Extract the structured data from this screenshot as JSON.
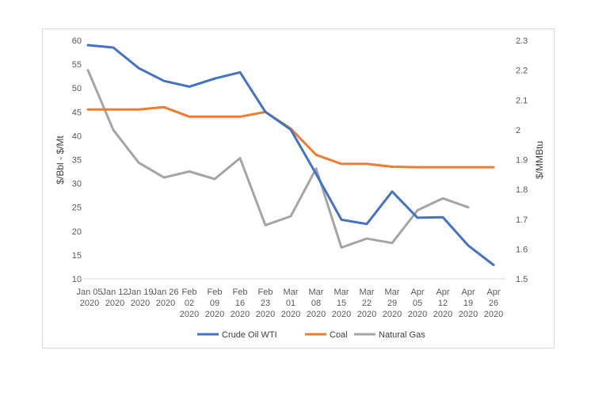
{
  "chart_data": {
    "type": "line",
    "title": "",
    "categories": [
      [
        "Jan 05",
        "2020"
      ],
      [
        "Jan 12",
        "2020"
      ],
      [
        "Jan 19",
        "2020"
      ],
      [
        "Jan 26",
        "2020"
      ],
      [
        "Feb",
        "02",
        "2020"
      ],
      [
        "Feb",
        "09",
        "2020"
      ],
      [
        "Feb",
        "16",
        "2020"
      ],
      [
        "Feb",
        "23",
        "2020"
      ],
      [
        "Mar",
        "01",
        "2020"
      ],
      [
        "Mar",
        "08",
        "2020"
      ],
      [
        "Mar",
        "15",
        "2020"
      ],
      [
        "Mar",
        "22",
        "2020"
      ],
      [
        "Mar",
        "29",
        "2020"
      ],
      [
        "Apr",
        "05",
        "2020"
      ],
      [
        "Apr",
        "12",
        "2020"
      ],
      [
        "Apr",
        "19",
        "2020"
      ],
      [
        "Apr",
        "26",
        "2020"
      ]
    ],
    "y_left": {
      "label": "$/Bbl - $/Mt",
      "min": 10,
      "max": 60,
      "ticks": [
        10,
        15,
        20,
        25,
        30,
        35,
        40,
        45,
        50,
        55,
        60
      ]
    },
    "y_right": {
      "label": "$/MMBtu",
      "min": 1.5,
      "max": 2.3,
      "ticks": [
        "1.5",
        "1.6",
        "1.7",
        "1.8",
        "1.9",
        "2",
        "2.1",
        "2.2",
        "2.3"
      ]
    },
    "grid": false,
    "legend_position": "bottom",
    "series": [
      {
        "name": "Crude Oil WTI",
        "axis": "left",
        "color": "#4472c4",
        "values": [
          59.0,
          58.5,
          54.2,
          51.5,
          50.3,
          52.0,
          53.3,
          45.0,
          41.3,
          32.0,
          22.4,
          21.5,
          28.3,
          22.8,
          22.9,
          17.0,
          12.9
        ]
      },
      {
        "name": "Coal",
        "axis": "left",
        "color": "#ed7d31",
        "values": [
          45.5,
          45.5,
          45.5,
          46.0,
          44.0,
          44.0,
          44.0,
          45.0,
          41.5,
          36.0,
          34.1,
          34.1,
          33.5,
          33.4,
          33.4,
          33.4,
          33.4
        ]
      },
      {
        "name": "Natural Gas",
        "axis": "right",
        "color": "#a5a5a5",
        "values": [
          2.2,
          2.0,
          1.89,
          1.84,
          1.86,
          1.835,
          1.905,
          1.68,
          1.71,
          1.87,
          1.605,
          1.635,
          1.62,
          1.73,
          1.77,
          1.74,
          null
        ]
      }
    ]
  }
}
